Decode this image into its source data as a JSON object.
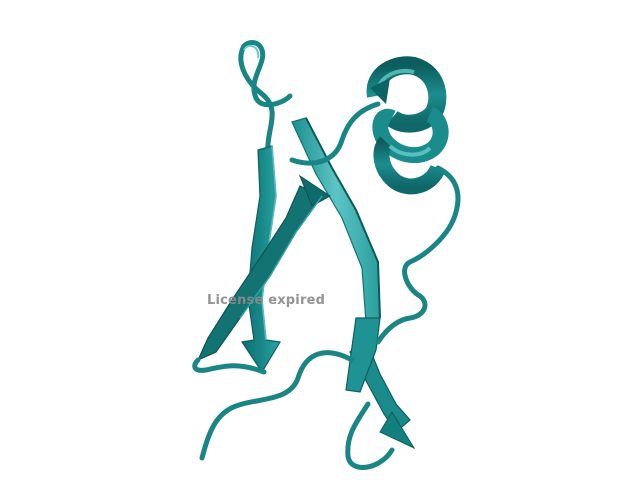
{
  "viewer": {
    "background_color": "#ffffff",
    "watermark": "License expired"
  },
  "structure": {
    "representation": "cartoon",
    "color": "#1a8a8a",
    "color_light": "#52bcbc",
    "color_dark": "#0d5f60",
    "elements": [
      "alpha-helix",
      "beta-strand",
      "beta-strand",
      "beta-strand",
      "beta-strand",
      "coil-loop"
    ]
  }
}
